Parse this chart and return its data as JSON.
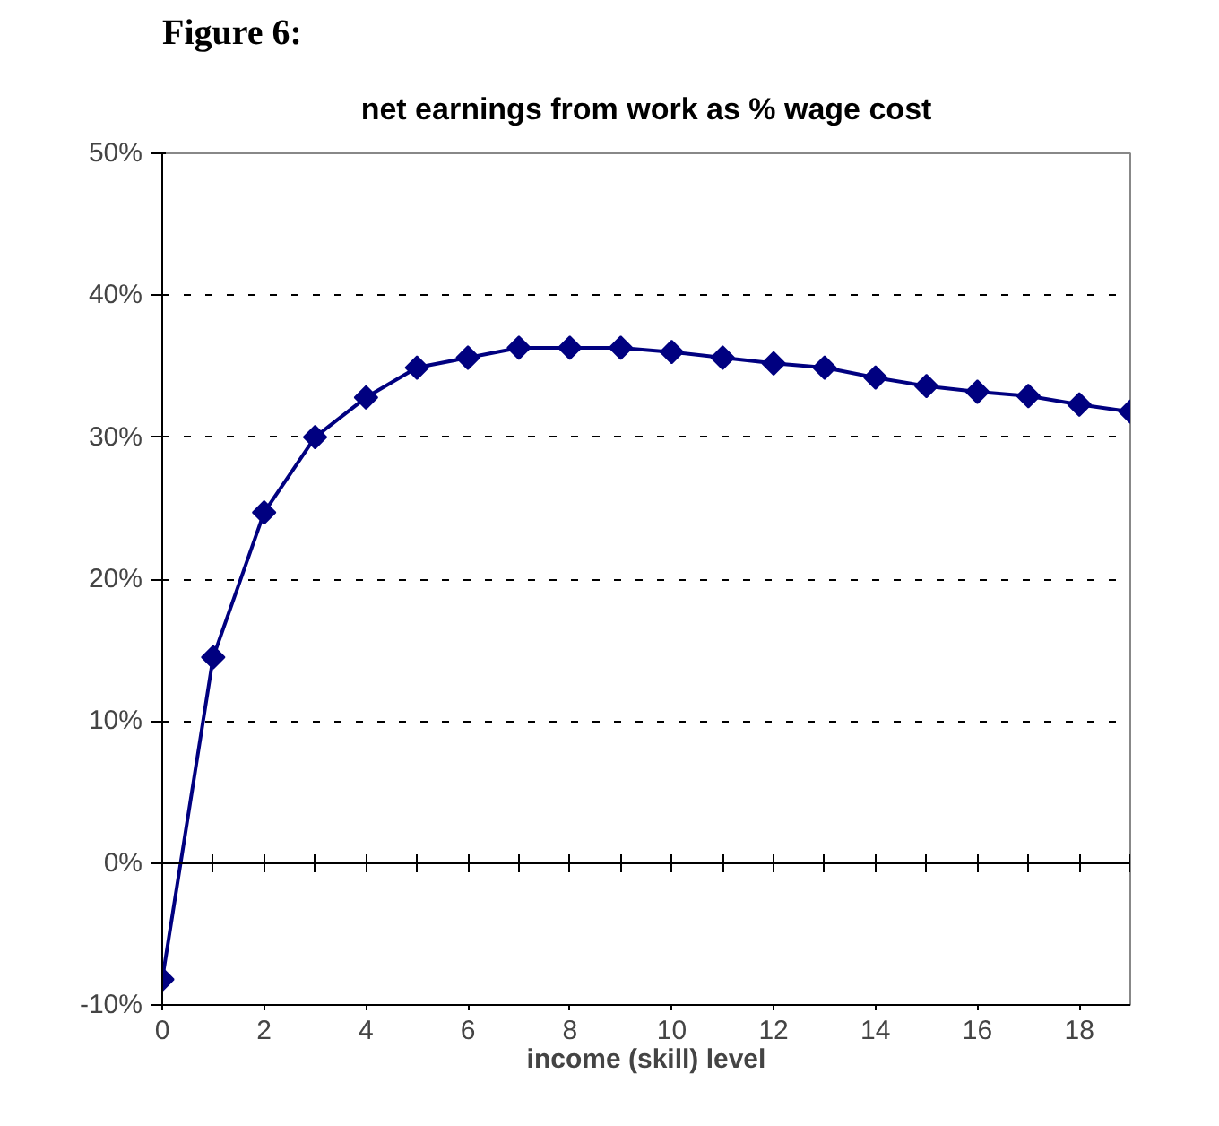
{
  "chart_data": {
    "type": "line",
    "title": "net earnings from work as % wage cost",
    "xlabel": "income (skill) level",
    "annotations": [
      "Figure 6:"
    ],
    "x": [
      0,
      1,
      2,
      3,
      4,
      5,
      6,
      7,
      8,
      9,
      10,
      11,
      12,
      13,
      14,
      15,
      16,
      17,
      18,
      19
    ],
    "series": [
      {
        "color": "#000080",
        "values": [
          -8.2,
          14.5,
          24.7,
          30,
          32.8,
          34.9,
          35.6,
          36.3,
          36.3,
          36.3,
          36.0,
          35.6,
          35.2,
          34.9,
          34.2,
          33.6,
          33.2,
          32.9,
          32.3,
          31.8
        ]
      }
    ],
    "xlim": [
      0,
      19
    ],
    "xticks": [
      0,
      2,
      4,
      6,
      8,
      10,
      12,
      14,
      16,
      18
    ],
    "ylim": [
      -10,
      50
    ],
    "yticks": [
      {
        "value": -10,
        "label": "-10%"
      },
      {
        "value": 0,
        "label": "0%"
      },
      {
        "value": 10,
        "label": "10%"
      },
      {
        "value": 20,
        "label": "20%"
      },
      {
        "value": 30,
        "label": "30%"
      },
      {
        "value": 40,
        "label": "40%"
      },
      {
        "value": 50,
        "label": "50%"
      }
    ],
    "ref_lines": [
      {
        "axis": "y",
        "value": 0,
        "label": null,
        "color": "#000000",
        "line_style": "solid"
      }
    ],
    "grid": "y",
    "marker": "diamond",
    "line_style": "solid"
  }
}
